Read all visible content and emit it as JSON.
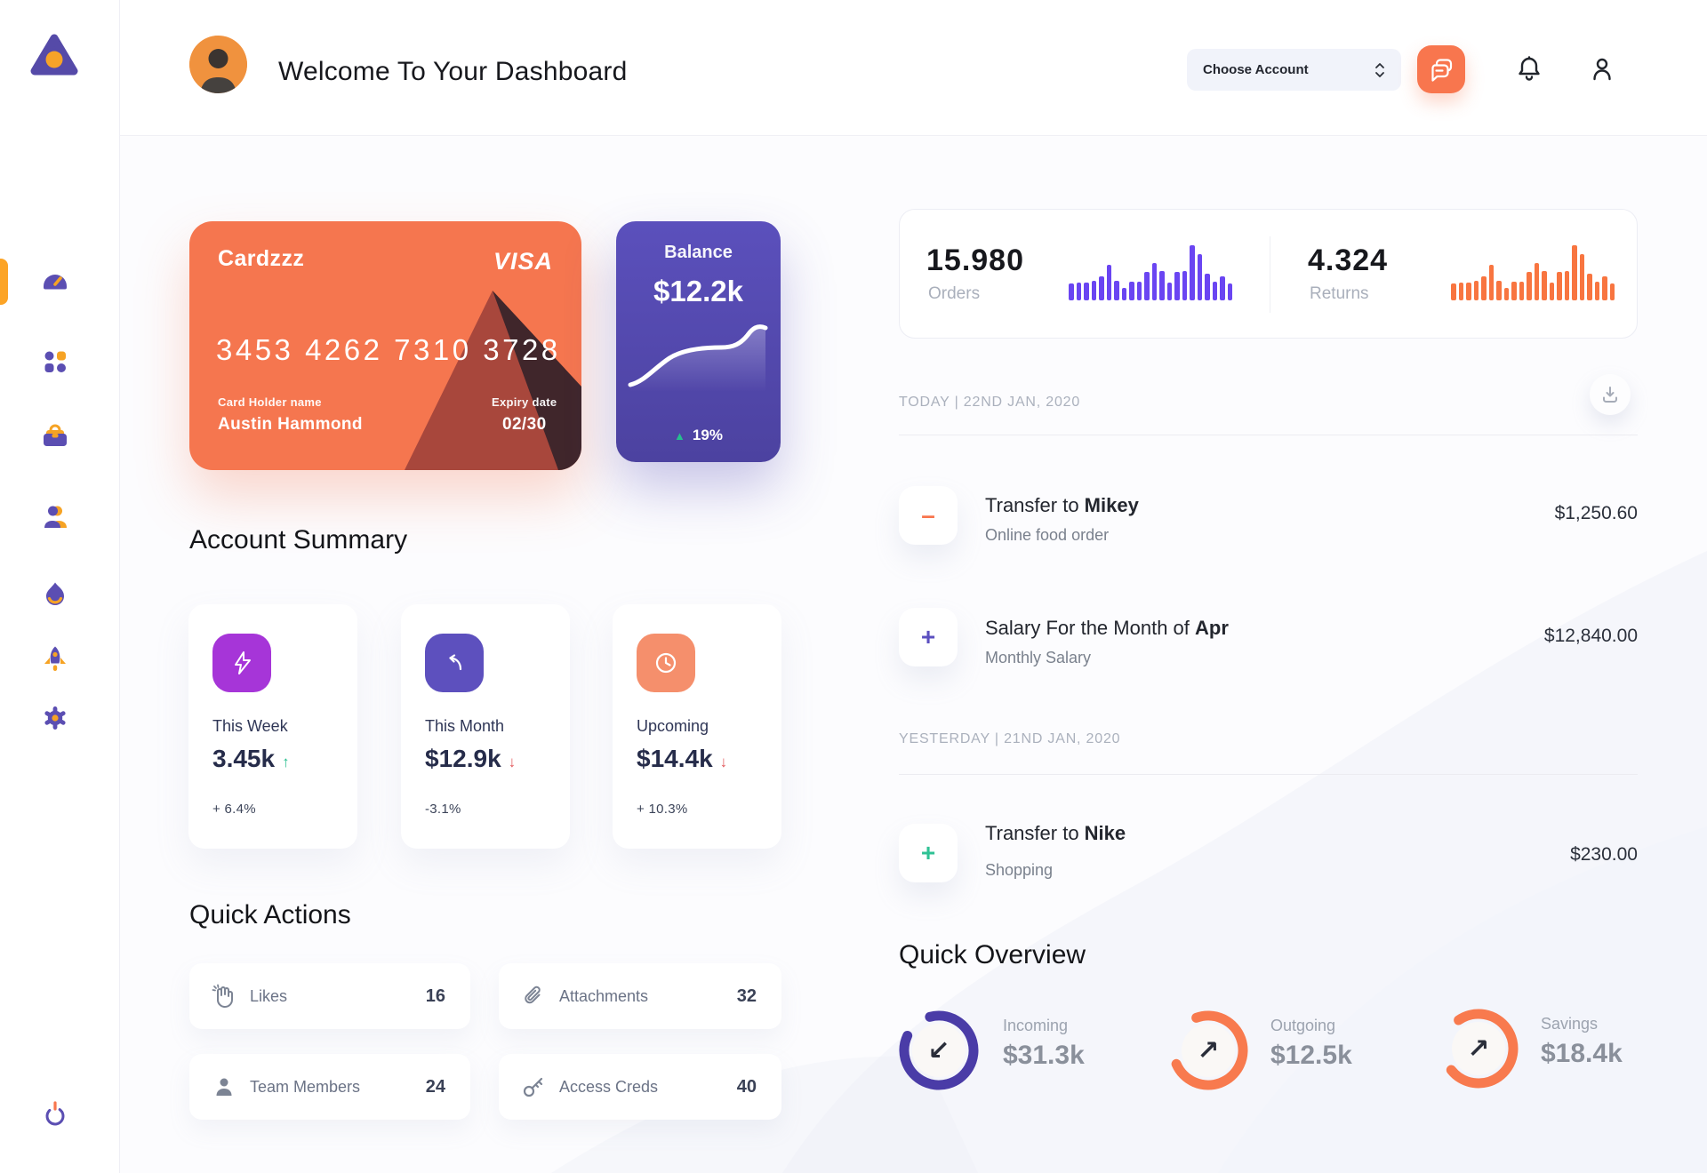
{
  "header": {
    "title": "Welcome To Your Dashboard",
    "account_selector": "Choose Account"
  },
  "sidebar": {
    "icons": [
      "dashboard-gauge",
      "apps-grid",
      "briefcase",
      "team",
      "flame",
      "rocket",
      "settings-gear"
    ],
    "active": "dashboard-gauge",
    "logout_icon": "power"
  },
  "bank_card": {
    "name": "Cardzzz",
    "brand": "VISA",
    "number": "3453 4262 7310 3728",
    "holder_label": "Card Holder name",
    "holder": "Austin Hammond",
    "expiry_label": "Expiry date",
    "expiry": "02/30"
  },
  "balance_card": {
    "label": "Balance",
    "value": "$12.2k",
    "arrow": "▲",
    "arrow_color": "#26BE8E",
    "trend": "19%"
  },
  "stats": {
    "orders": {
      "value": "15.980",
      "label": "Orders"
    },
    "returns": {
      "value": "4.324",
      "label": "Returns"
    },
    "chart_values": [
      30,
      33,
      32,
      35,
      43,
      65,
      35,
      22,
      34,
      34,
      51,
      68,
      54,
      32,
      51,
      54,
      100,
      84,
      49,
      34,
      43,
      30
    ],
    "orders_color": "#6A45F2",
    "returns_color": "#F87540"
  },
  "account_summary": {
    "title": "Account Summary",
    "cards": [
      {
        "icon": "bolt",
        "icon_bg": "#A635D8",
        "label": "This Week",
        "value": "3.45k",
        "arrow": "↑",
        "arrow_color": "#26BE8E",
        "delta": "+ 6.4%"
      },
      {
        "icon": "arrow-up-left",
        "icon_bg": "#5D50BE",
        "label": "This Month",
        "value": "$12.9k",
        "arrow": "↓",
        "arrow_color": "#E2595C",
        "delta": "-3.1%"
      },
      {
        "icon": "clock",
        "icon_bg": "#F58F6C",
        "label": "Upcoming",
        "value": "$14.4k",
        "arrow": "↓",
        "arrow_color": "#E2595C",
        "delta": "+ 10.3%"
      }
    ]
  },
  "quick_actions": {
    "title": "Quick Actions",
    "items": [
      {
        "icon": "clap-hand",
        "label": "Likes",
        "count": "16"
      },
      {
        "icon": "paperclip",
        "label": "Attachments",
        "count": "32"
      },
      {
        "icon": "person",
        "label": "Team Members",
        "count": "24"
      },
      {
        "icon": "key",
        "label": "Access Creds",
        "count": "40"
      }
    ]
  },
  "transactions": {
    "sections": [
      {
        "heading": "TODAY | 22ND JAN, 2020",
        "rows": [
          {
            "symbol": "–",
            "symbol_color": "#F8764E",
            "title_prefix": "Transfer to ",
            "title_bold": "Mikey",
            "subtitle": "Online food order",
            "amount": "$1,250.60"
          },
          {
            "symbol": "+",
            "symbol_color": "#5B4FC0",
            "title_prefix": "Salary For the Month of ",
            "title_bold": "Apr",
            "subtitle": "Monthly Salary",
            "amount": "$12,840.00"
          }
        ]
      },
      {
        "heading": "YESTERDAY | 21ND JAN, 2020",
        "rows": [
          {
            "symbol": "+",
            "symbol_color": "#2FC294",
            "title_prefix": "Transfer to ",
            "title_bold": "Nike",
            "subtitle": "Shopping",
            "amount": "$230.00"
          }
        ]
      }
    ]
  },
  "quick_overview": {
    "title": "Quick Overview",
    "items": [
      {
        "label": "Incoming",
        "value": "$31.3k",
        "ring_color": "#4A3CA7",
        "percent": 86,
        "rotation": 255,
        "arrow": "↙"
      },
      {
        "label": "Outgoing",
        "value": "$12.5k",
        "ring_color": "#F87A4E",
        "percent": 74,
        "rotation": 250,
        "arrow": "↗"
      },
      {
        "label": "Savings",
        "value": "$18.4k",
        "ring_color": "#F87A4E",
        "percent": 74,
        "rotation": 235,
        "arrow": "↗"
      }
    ]
  }
}
